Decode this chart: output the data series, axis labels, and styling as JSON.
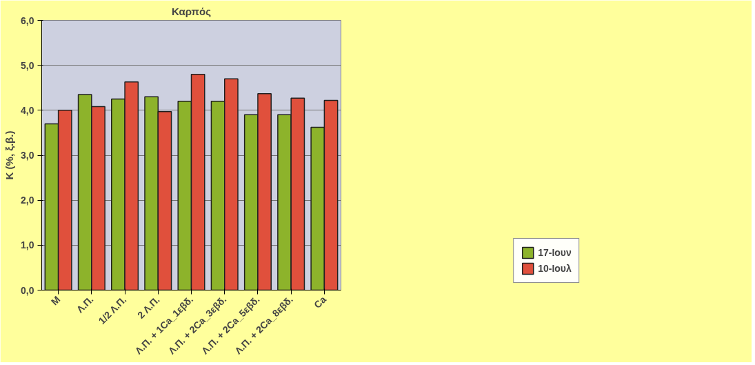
{
  "chart_data": {
    "type": "bar",
    "title": "Καρπός",
    "ylabel": "K (%, ξ.β.)",
    "categories": [
      "M",
      "Λ.Π.",
      "1/2 Λ.Π.",
      "2 Λ.Π.",
      "Λ.Π. + 1Ca_1εβδ.",
      "Λ.Π. + 2Ca_3εβδ.",
      "Λ.Π. + 2Ca_5εβδ.",
      "Λ.Π. + 2Ca_8εβδ.",
      "Ca"
    ],
    "series": [
      {
        "name": "17-Ιουν",
        "color": "#8db32b",
        "values": [
          3.7,
          4.35,
          4.25,
          4.3,
          4.2,
          4.2,
          3.9,
          3.9,
          3.62
        ]
      },
      {
        "name": "10-Ιουλ",
        "color": "#e0503c",
        "values": [
          4.0,
          4.08,
          4.63,
          3.97,
          4.8,
          4.7,
          4.37,
          4.27,
          4.22
        ]
      }
    ],
    "ylim": [
      0,
      6
    ],
    "yticks": [
      {
        "value": 0,
        "label": "0,0"
      },
      {
        "value": 1,
        "label": "1,0"
      },
      {
        "value": 2,
        "label": "2,0"
      },
      {
        "value": 3,
        "label": "3,0"
      },
      {
        "value": 4,
        "label": "4,0"
      },
      {
        "value": 5,
        "label": "5,0"
      },
      {
        "value": 6,
        "label": "6,0"
      }
    ],
    "grid": "y",
    "legend": "bottom right"
  }
}
